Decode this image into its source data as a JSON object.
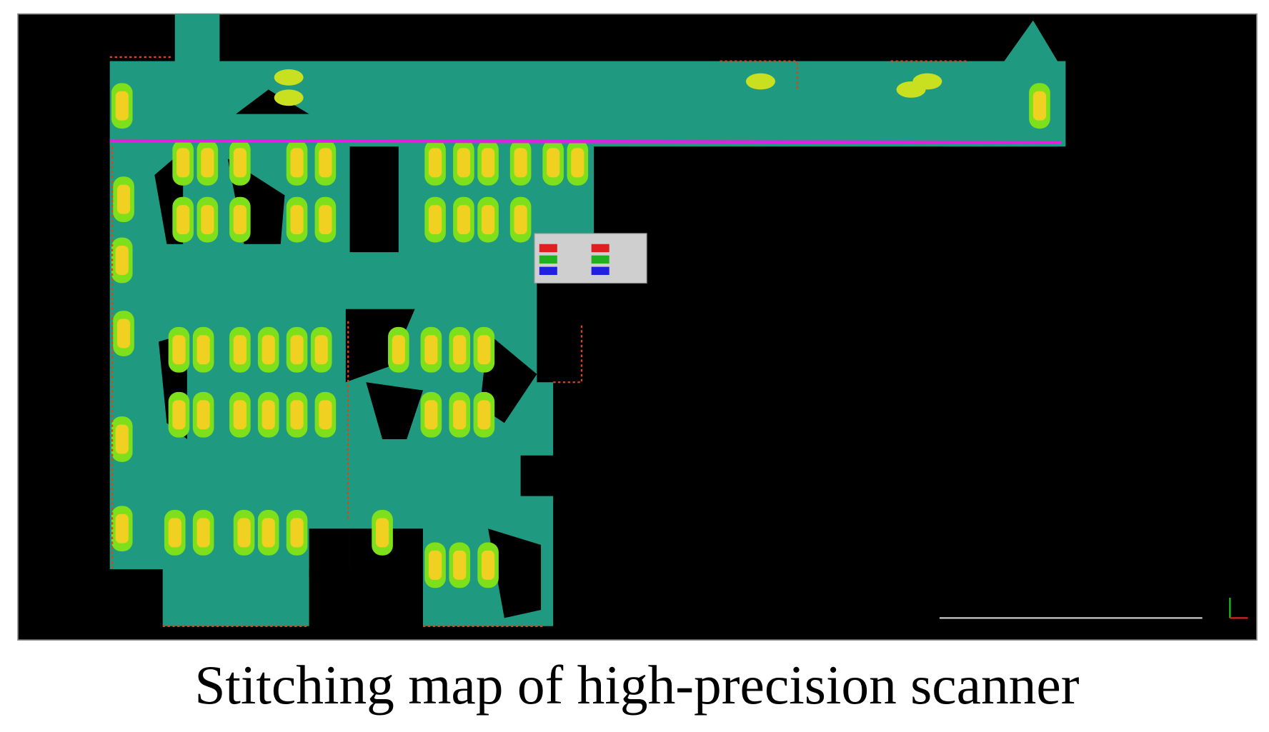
{
  "caption": "Stitching map of high-precision scanner"
}
